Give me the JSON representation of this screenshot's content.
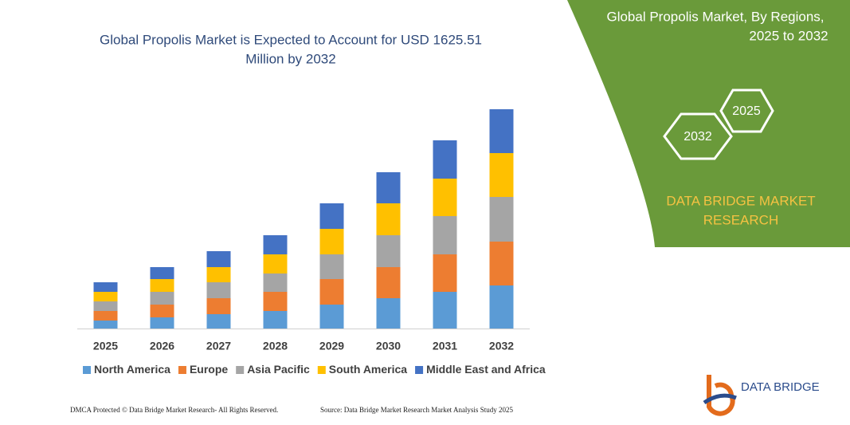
{
  "chart_data": {
    "type": "stacked_bar",
    "title": [
      "Global Propolis Market is Expected to Account for USD 1625.51",
      "Million by 2032"
    ],
    "categories": [
      "2025",
      "2026",
      "2027",
      "2028",
      "2029",
      "2030",
      "2031",
      "2032"
    ],
    "series": [
      {
        "name": "North America",
        "color": "#5b9bd5",
        "values": [
          10,
          14,
          18,
          22,
          30,
          38,
          46,
          54
        ]
      },
      {
        "name": "Europe",
        "color": "#ed7d31",
        "values": [
          12,
          16,
          20,
          24,
          32,
          39,
          47,
          55
        ]
      },
      {
        "name": "Asia Pacific",
        "color": "#a5a5a5",
        "values": [
          12,
          16,
          20,
          23,
          31,
          40,
          48,
          56
        ]
      },
      {
        "name": "South America",
        "color": "#ffc000",
        "values": [
          12,
          16,
          19,
          24,
          32,
          40,
          47,
          55
        ]
      },
      {
        "name": "Middle East and Africa",
        "color": "#4472c4",
        "values": [
          12,
          15,
          20,
          24,
          32,
          39,
          48,
          55
        ]
      }
    ],
    "panel": {
      "title": [
        "Global Propolis Market, By Regions,",
        "2025 to 2032"
      ],
      "hex_start": "2025",
      "hex_end": "2032",
      "brand": [
        "DATA BRIDGE MARKET",
        "RESEARCH"
      ]
    },
    "logo": "DATA BRIDGE",
    "footer_left": "DMCA Protected © Data Bridge Market Research- All Rights Reserved.",
    "footer_right": "Source: Data Bridge Market Research Market Analysis Study 2025"
  }
}
